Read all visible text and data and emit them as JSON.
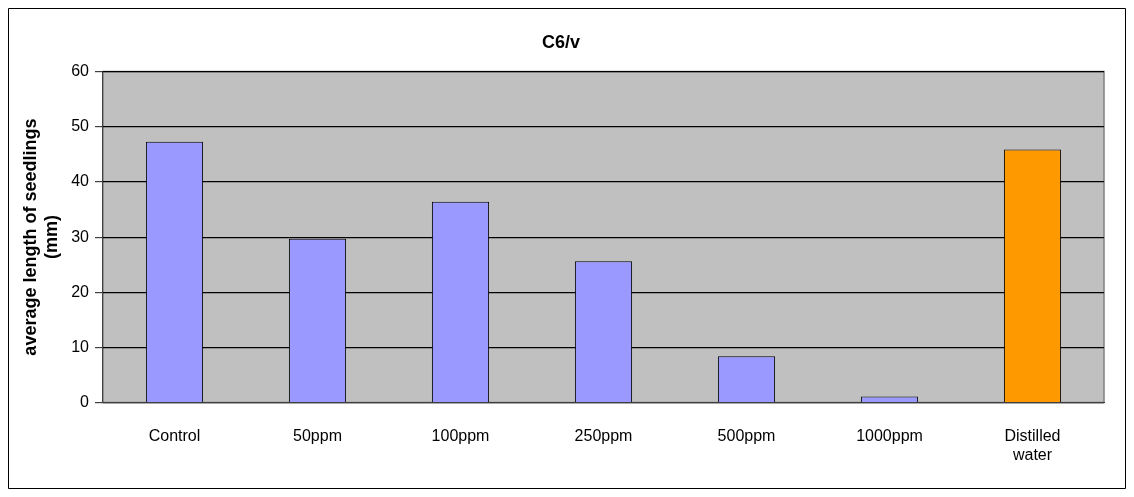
{
  "chart_data": {
    "type": "bar",
    "title": "C6/v",
    "ylabel": "average length of seedlings (mm)",
    "categories": [
      "Control",
      "50ppm",
      "100ppm",
      "250ppm",
      "500ppm",
      "1000ppm",
      "Distilled water"
    ],
    "values": [
      47.3,
      29.7,
      36.4,
      25.6,
      8.4,
      1.1,
      45.9
    ],
    "colors": [
      "#9999ff",
      "#9999ff",
      "#9999ff",
      "#9999ff",
      "#9999ff",
      "#9999ff",
      "#ff9900"
    ],
    "ylim": [
      0,
      60
    ],
    "yticks": [
      0,
      10,
      20,
      30,
      40,
      50,
      60
    ],
    "grid": "y",
    "legend": false
  }
}
